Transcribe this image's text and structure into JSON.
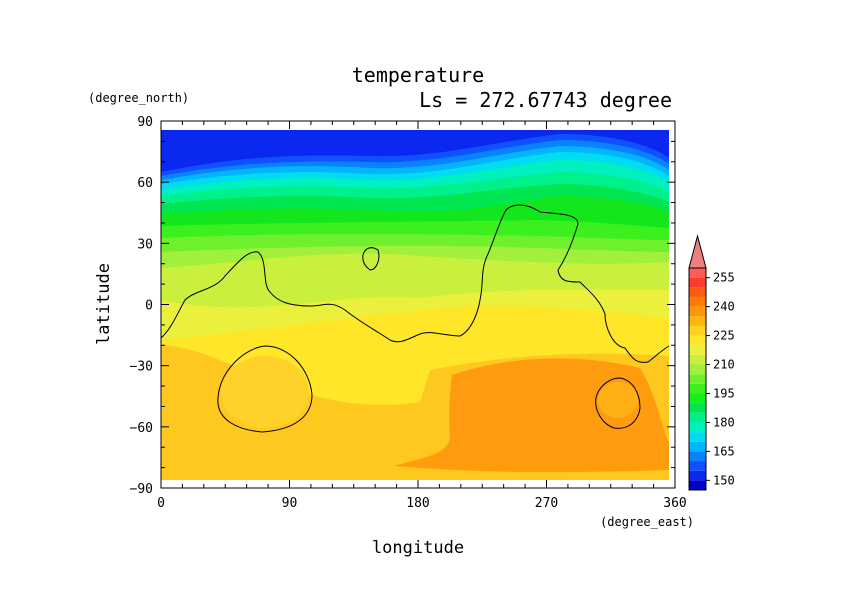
{
  "chart_data": {
    "type": "heatmap",
    "title": "temperature",
    "subtitle": "Ls = 272.67743 degree",
    "xlabel": "longitude",
    "ylabel": "latitude",
    "x_units": "(degree_east)",
    "y_units": "(degree_north)",
    "xlim": [
      0,
      360
    ],
    "ylim": [
      -90,
      90
    ],
    "x_ticks": [
      "0",
      "90",
      "180",
      "270",
      "360"
    ],
    "y_ticks": [
      "90",
      "60",
      "30",
      "0",
      "−30",
      "−60",
      "−90"
    ],
    "x_tick_values": [
      0,
      90,
      180,
      270,
      360
    ],
    "y_tick_values": [
      90,
      60,
      30,
      0,
      -30,
      -60,
      -90
    ],
    "colorbar": {
      "levels": [
        145,
        150,
        155,
        160,
        165,
        170,
        175,
        180,
        185,
        190,
        195,
        200,
        205,
        210,
        215,
        220,
        225,
        230,
        235,
        240,
        245,
        250,
        255,
        260
      ],
      "colors": [
        "#0000c8",
        "#0a28f0",
        "#0f50ff",
        "#0a82ff",
        "#05b4ff",
        "#00dcf0",
        "#00f0c0",
        "#00f08c",
        "#00e650",
        "#14f01e",
        "#3cf01e",
        "#6ef02d",
        "#a0f03c",
        "#c8f03c",
        "#ebf03c",
        "#ffe628",
        "#ffd21e",
        "#ffb40f",
        "#ff960a",
        "#ff7d05",
        "#ff5a14",
        "#ff3c28",
        "#ff5a5a"
      ],
      "extend_color": "#f08080",
      "tick_labels": [
        "255",
        "240",
        "225",
        "210",
        "195",
        "180",
        "165",
        "150"
      ],
      "tick_values": [
        255,
        240,
        225,
        210,
        195,
        180,
        165,
        150
      ]
    },
    "grid": false,
    "legend": "colorbar right"
  }
}
